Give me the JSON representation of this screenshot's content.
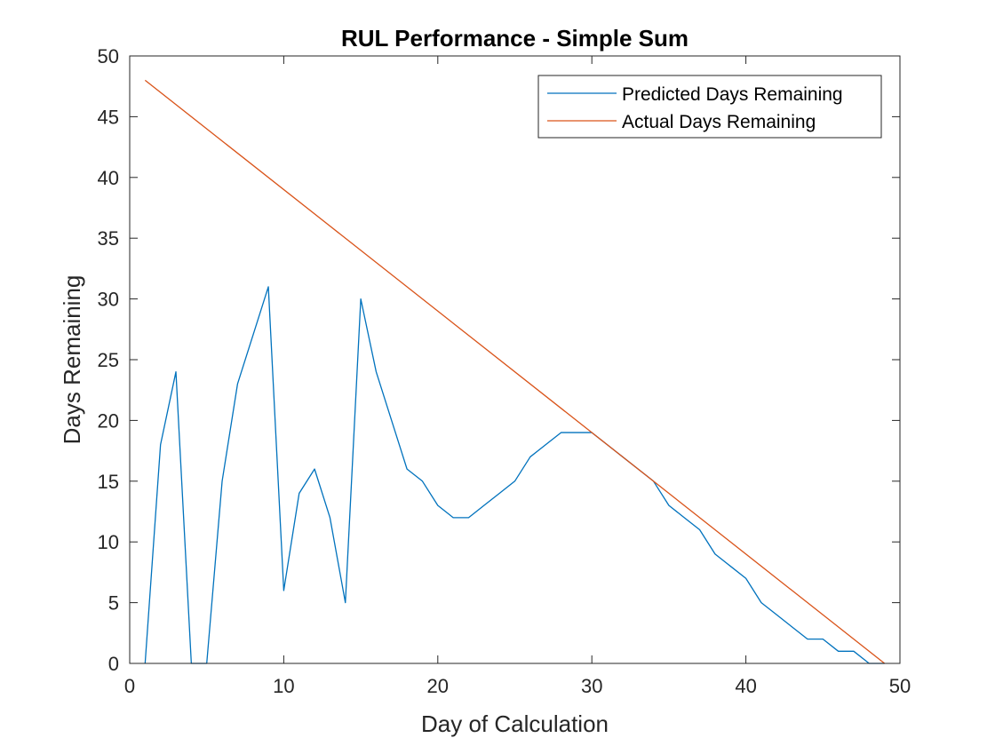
{
  "chart_data": {
    "type": "line",
    "title": "RUL Performance - Simple Sum",
    "xlabel": "Day of Calculation",
    "ylabel": "Days Remaining",
    "xlim": [
      0,
      50
    ],
    "ylim": [
      0,
      50
    ],
    "xticks": [
      0,
      10,
      20,
      30,
      40,
      50
    ],
    "yticks": [
      0,
      5,
      10,
      15,
      20,
      25,
      30,
      35,
      40,
      45,
      50
    ],
    "grid": false,
    "legend_position": "top-right",
    "series": [
      {
        "name": "Predicted Days Remaining",
        "color": "#0072bd",
        "x": [
          1,
          2,
          3,
          4,
          5,
          6,
          7,
          8,
          9,
          10,
          11,
          12,
          13,
          14,
          15,
          16,
          17,
          18,
          19,
          20,
          21,
          22,
          23,
          24,
          25,
          26,
          27,
          28,
          29,
          30,
          31,
          32,
          33,
          34,
          35,
          36,
          37,
          38,
          39,
          40,
          41,
          42,
          43,
          44,
          45,
          46,
          47,
          48,
          49
        ],
        "y": [
          0,
          18,
          24,
          0,
          0,
          15,
          23,
          27,
          31,
          6,
          14,
          16,
          12,
          5,
          30,
          24,
          20,
          16,
          15,
          13,
          12,
          12,
          13,
          14,
          15,
          17,
          18,
          19,
          19,
          19,
          18,
          17,
          16,
          15,
          13,
          12,
          11,
          9,
          8,
          7,
          5,
          4,
          3,
          2,
          2,
          1,
          1,
          0,
          0
        ]
      },
      {
        "name": "Actual Days Remaining",
        "color": "#d95319",
        "x": [
          1,
          49
        ],
        "y": [
          48,
          0
        ]
      }
    ]
  }
}
